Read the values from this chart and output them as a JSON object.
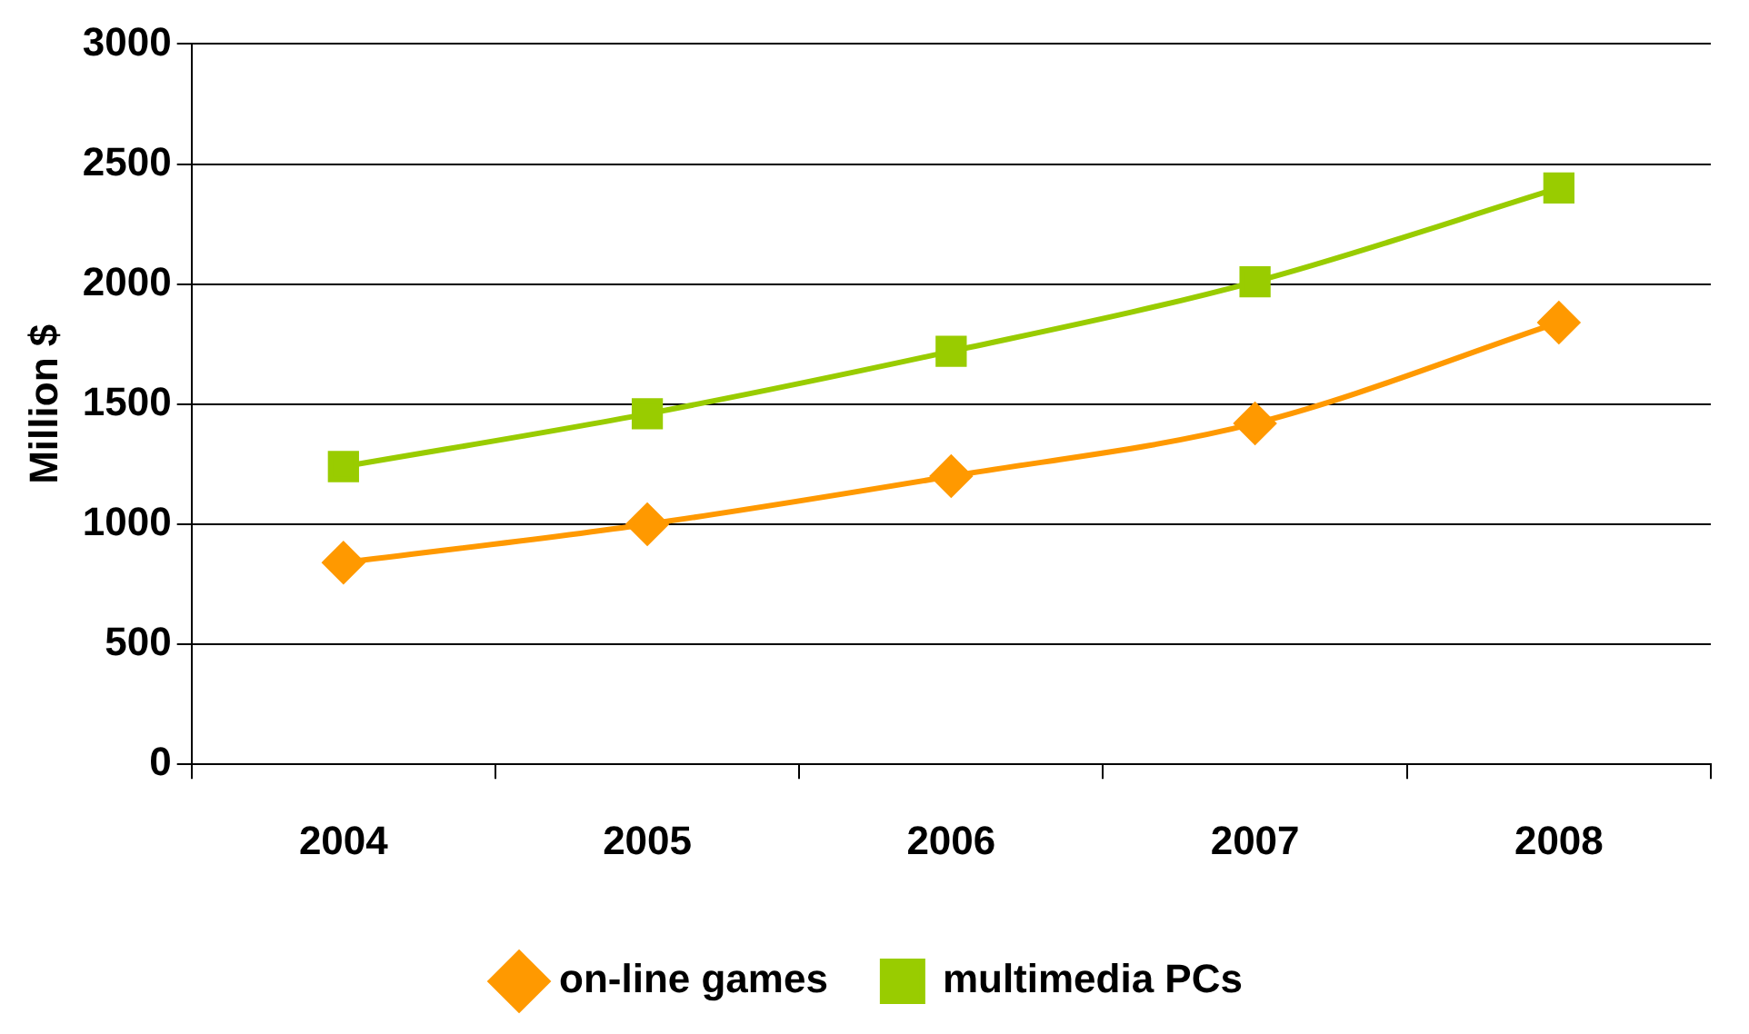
{
  "chart_data": {
    "type": "line",
    "ylabel": "Million $",
    "categories": [
      "2004",
      "2005",
      "2006",
      "2007",
      "2008"
    ],
    "series": [
      {
        "name": "on-line games",
        "color": "#ff9900",
        "values": [
          840,
          1000,
          1200,
          1420,
          1840
        ],
        "marker": "diamond"
      },
      {
        "name": "multimedia PCs",
        "color": "#99cc00",
        "values": [
          1240,
          1460,
          1720,
          2010,
          2400
        ],
        "marker": "square"
      }
    ],
    "ylim": [
      0,
      3000
    ],
    "yticks": [
      0,
      500,
      1000,
      1500,
      2000,
      2500,
      3000
    ],
    "grid": "y",
    "legend": "bottom"
  }
}
